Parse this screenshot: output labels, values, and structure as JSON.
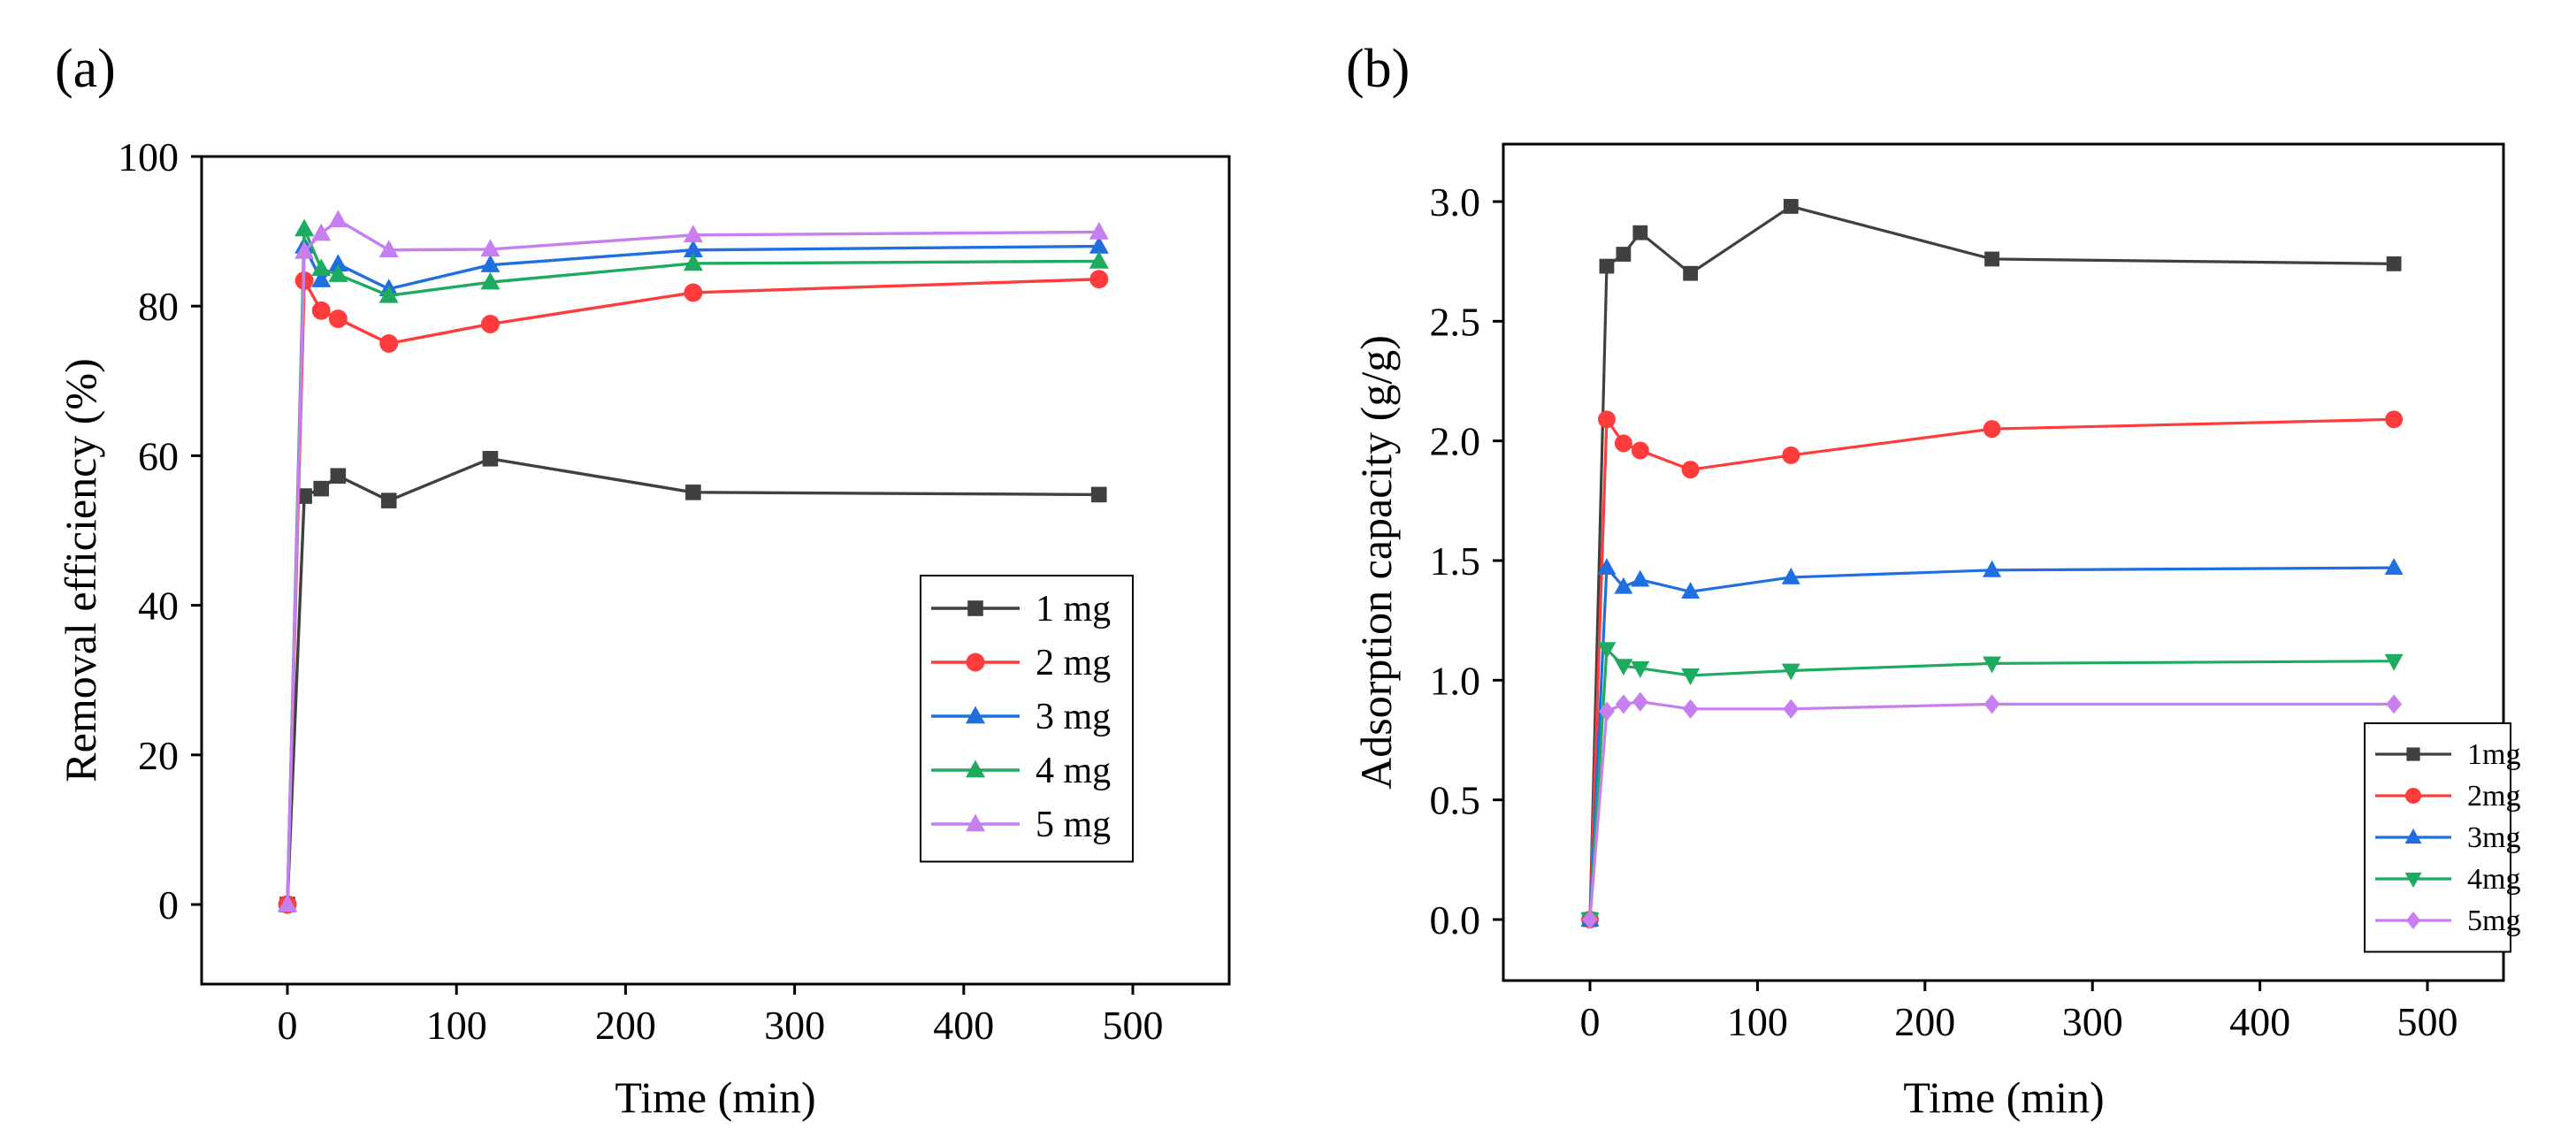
{
  "chart_data": [
    {
      "type": "line",
      "panel_label": "(a)",
      "title": "",
      "xlabel": "Time (min)",
      "ylabel": "Removal efficiency (%)",
      "xlim": [
        -50,
        550
      ],
      "ylim": [
        -10,
        100
      ],
      "xticks": [
        0,
        100,
        200,
        300,
        400,
        500
      ],
      "yticks": [
        0,
        20,
        40,
        60,
        80,
        100
      ],
      "grid": false,
      "legend_position": "bottom-right",
      "x": [
        0,
        10,
        20,
        30,
        60,
        120,
        240,
        480
      ],
      "series": [
        {
          "name": "1 mg",
          "color": "#404040",
          "marker": "square",
          "values": [
            0,
            54.6,
            55.6,
            57.3,
            54.0,
            59.6,
            55.1,
            54.8
          ]
        },
        {
          "name": "2 mg",
          "color": "#ff3b3b",
          "marker": "circle",
          "values": [
            0,
            83.4,
            79.4,
            78.3,
            75.0,
            77.6,
            81.8,
            83.6
          ]
        },
        {
          "name": "3 mg",
          "color": "#1f6fe0",
          "marker": "triangle",
          "values": [
            0,
            88.0,
            83.5,
            85.6,
            82.3,
            85.5,
            87.5,
            88.0
          ]
        },
        {
          "name": "4 mg",
          "color": "#1fab5f",
          "marker": "triangle",
          "values": [
            0,
            90.3,
            85.0,
            84.2,
            81.4,
            83.2,
            85.7,
            86.0
          ]
        },
        {
          "name": "5 mg",
          "color": "#c77ff0",
          "marker": "triangle",
          "values": [
            0,
            87.3,
            89.7,
            91.5,
            87.5,
            87.6,
            89.5,
            89.9
          ]
        }
      ]
    },
    {
      "type": "line",
      "panel_label": "(b)",
      "title": "",
      "xlabel": "Time (min)",
      "ylabel": "Adsorption capacity (g/g)",
      "xlim": [
        -50,
        550
      ],
      "ylim": [
        -0.25,
        3.25
      ],
      "xticks": [
        0,
        100,
        200,
        300,
        400,
        500
      ],
      "yticks": [
        0.0,
        0.5,
        1.0,
        1.5,
        2.0,
        2.5,
        3.0
      ],
      "ytick_labels": [
        "0.0",
        "0.5",
        "1.0",
        "1.5",
        "2.0",
        "2.5",
        "3.0"
      ],
      "grid": false,
      "legend_position": "bottom-right",
      "x": [
        0,
        10,
        20,
        30,
        60,
        120,
        240,
        480
      ],
      "series": [
        {
          "name": "1mg",
          "color": "#404040",
          "marker": "square",
          "values": [
            0,
            2.73,
            2.78,
            2.87,
            2.7,
            2.98,
            2.76,
            2.74
          ]
        },
        {
          "name": "2mg",
          "color": "#ff3b3b",
          "marker": "circle",
          "values": [
            0,
            2.09,
            1.99,
            1.96,
            1.88,
            1.94,
            2.05,
            2.09
          ]
        },
        {
          "name": "3mg",
          "color": "#1f6fe0",
          "marker": "triangle",
          "values": [
            0,
            1.47,
            1.39,
            1.42,
            1.37,
            1.43,
            1.46,
            1.47
          ]
        },
        {
          "name": "4mg",
          "color": "#1fab5f",
          "marker": "triangle-down",
          "values": [
            0,
            1.13,
            1.06,
            1.05,
            1.02,
            1.04,
            1.07,
            1.08
          ]
        },
        {
          "name": "5mg",
          "color": "#c77ff0",
          "marker": "diamond",
          "values": [
            0,
            0.87,
            0.9,
            0.91,
            0.88,
            0.88,
            0.9,
            0.9
          ]
        }
      ]
    }
  ]
}
